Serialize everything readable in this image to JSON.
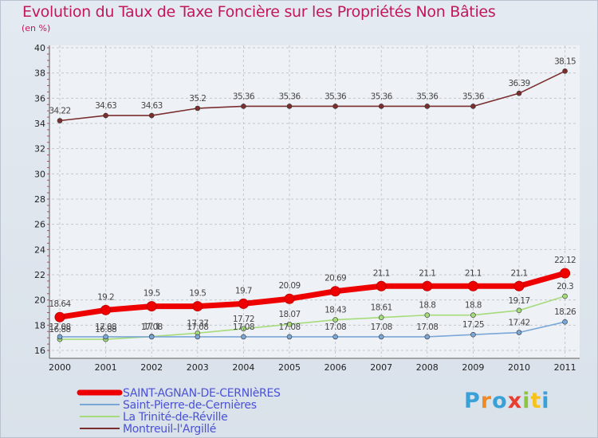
{
  "title": "Evolution du Taux de Taxe Foncière sur les Propriétés Non Bâties",
  "unit": "(en %)",
  "brand": "Proxiti",
  "chart_data": {
    "type": "line",
    "title": "Evolution du Taux de Taxe Foncière sur les Propriétés Non Bâties",
    "ylabel": "(en %)",
    "xlabel": "",
    "ylim": [
      16,
      40
    ],
    "yticks": [
      16,
      18,
      20,
      22,
      24,
      26,
      28,
      30,
      32,
      34,
      36,
      38,
      40
    ],
    "categories": [
      "2000",
      "2001",
      "2002",
      "2003",
      "2004",
      "2005",
      "2006",
      "2007",
      "2008",
      "2009",
      "2010",
      "2011"
    ],
    "grid": true,
    "legend": "bottom-left",
    "series": [
      {
        "name": "Montreuil-l'Argillé",
        "color": "#7b2e2e",
        "values": [
          34.22,
          34.63,
          34.63,
          35.2,
          35.36,
          35.36,
          35.36,
          35.36,
          35.36,
          35.36,
          36.39,
          38.15
        ],
        "labels": [
          "34.22",
          "34.63",
          "34.63",
          "35.2",
          "35.36",
          "35.36",
          "35.36",
          "35.36",
          "35.36",
          "35.36",
          "36.39",
          "38.15"
        ]
      },
      {
        "name": "La Trinité-de-Réville",
        "color": "#a6db7b",
        "values": [
          16.88,
          16.88,
          17.1,
          17.37,
          17.72,
          18.07,
          18.43,
          18.61,
          18.8,
          18.8,
          19.17,
          20.3
        ],
        "labels": [
          "16.88",
          "16.88",
          "17.1",
          "17.37",
          "17.72",
          "18.07",
          "18.43",
          "18.61",
          "18.8",
          "18.8",
          "19.17",
          "20.3"
        ]
      },
      {
        "name": "Saint-Pierre-de-Cernières",
        "color": "#7aa7d6",
        "values": [
          17.08,
          17.08,
          17.08,
          17.08,
          17.08,
          17.08,
          17.08,
          17.08,
          17.08,
          17.25,
          17.42,
          18.26
        ],
        "labels": [
          "17.08",
          "17.08",
          "17.08",
          "17.08",
          "17.08",
          "17.08",
          "17.08",
          "17.08",
          "17.08",
          "17.25",
          "17.42",
          "18.26"
        ]
      },
      {
        "name": "SAINT-AGNAN-DE-CERNIèRES",
        "color": "#ee0000",
        "values": [
          18.64,
          19.2,
          19.5,
          19.5,
          19.7,
          20.09,
          20.69,
          21.1,
          21.1,
          21.1,
          21.1,
          22.12
        ],
        "labels": [
          "18.64",
          "19.2",
          "19.5",
          "19.5",
          "19.7",
          "20.09",
          "20.69",
          "21.1",
          "21.1",
          "21.1",
          "21.1",
          "22.12"
        ]
      }
    ],
    "legend_order": [
      "SAINT-AGNAN-DE-CERNIèRES",
      "Saint-Pierre-de-Cernières",
      "La Trinité-de-Réville",
      "Montreuil-l'Argillé"
    ]
  }
}
